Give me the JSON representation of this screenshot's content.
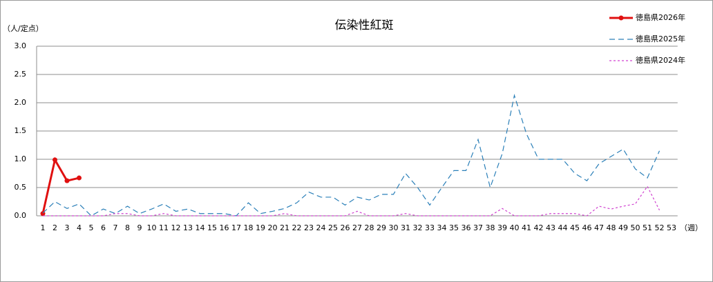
{
  "chart_data": {
    "type": "line",
    "title": "伝染性紅斑",
    "y_label": "（人/定点）",
    "x_label": "（週）",
    "categories": [
      "1",
      "2",
      "3",
      "4",
      "5",
      "6",
      "7",
      "8",
      "9",
      "10",
      "11",
      "12",
      "13",
      "14",
      "15",
      "16",
      "17",
      "18",
      "19",
      "20",
      "21",
      "22",
      "23",
      "24",
      "25",
      "26",
      "27",
      "28",
      "29",
      "30",
      "31",
      "32",
      "33",
      "34",
      "35",
      "36",
      "37",
      "38",
      "39",
      "40",
      "41",
      "42",
      "43",
      "44",
      "45",
      "46",
      "47",
      "48",
      "49",
      "50",
      "51",
      "52",
      "53"
    ],
    "ylim": [
      0,
      3
    ],
    "yticks": [
      {
        "value": 0,
        "label": "0.0"
      },
      {
        "value": 0.5,
        "label": "0.5"
      },
      {
        "value": 1,
        "label": "1.0"
      },
      {
        "value": 1.5,
        "label": "1.5"
      },
      {
        "value": 2,
        "label": "2.0"
      },
      {
        "value": 2.5,
        "label": "2.5"
      },
      {
        "value": 3,
        "label": "3.0"
      }
    ],
    "grid": true,
    "legend": "top-right",
    "series": [
      {
        "name": "徳島県2026年",
        "color": "#e01010",
        "line_style": "solid",
        "marker": "circle",
        "values": [
          0.04,
          0.99,
          0.62,
          0.67,
          null,
          null,
          null,
          null,
          null,
          null,
          null,
          null,
          null,
          null,
          null,
          null,
          null,
          null,
          null,
          null,
          null,
          null,
          null,
          null,
          null,
          null,
          null,
          null,
          null,
          null,
          null,
          null,
          null,
          null,
          null,
          null,
          null,
          null,
          null,
          null,
          null,
          null,
          null,
          null,
          null,
          null,
          null,
          null,
          null,
          null,
          null,
          null,
          null
        ]
      },
      {
        "name": "徳島県2025年",
        "color": "#2a7fb8",
        "line_style": "dashed",
        "values": [
          0.05,
          0.25,
          0.13,
          0.21,
          0.0,
          0.12,
          0.04,
          0.17,
          0.04,
          0.12,
          0.21,
          0.08,
          0.12,
          0.04,
          0.04,
          0.04,
          0.0,
          0.23,
          0.04,
          0.08,
          0.13,
          0.23,
          0.42,
          0.33,
          0.33,
          0.19,
          0.33,
          0.28,
          0.38,
          0.38,
          0.75,
          0.5,
          0.19,
          0.5,
          0.8,
          0.8,
          1.35,
          0.5,
          1.1,
          2.13,
          1.45,
          1.0,
          1.0,
          1.0,
          0.75,
          0.62,
          0.92,
          1.05,
          1.18,
          0.83,
          0.67,
          1.15,
          null
        ]
      },
      {
        "name": "徳島県2024年",
        "color": "#d040d0",
        "line_style": "dotted",
        "values": [
          0.0,
          0.0,
          0.0,
          0.0,
          0.0,
          0.0,
          0.04,
          0.04,
          0.0,
          0.0,
          0.04,
          0.0,
          0.0,
          0.0,
          0.0,
          0.0,
          0.0,
          0.0,
          0.0,
          0.0,
          0.04,
          0.0,
          0.0,
          0.0,
          0.0,
          0.0,
          0.08,
          0.0,
          0.0,
          0.0,
          0.04,
          0.0,
          0.0,
          0.0,
          0.0,
          0.0,
          0.0,
          0.0,
          0.13,
          0.0,
          0.0,
          0.0,
          0.04,
          0.04,
          0.04,
          0.0,
          0.17,
          0.12,
          0.17,
          0.21,
          0.52,
          0.1,
          null
        ]
      }
    ]
  }
}
